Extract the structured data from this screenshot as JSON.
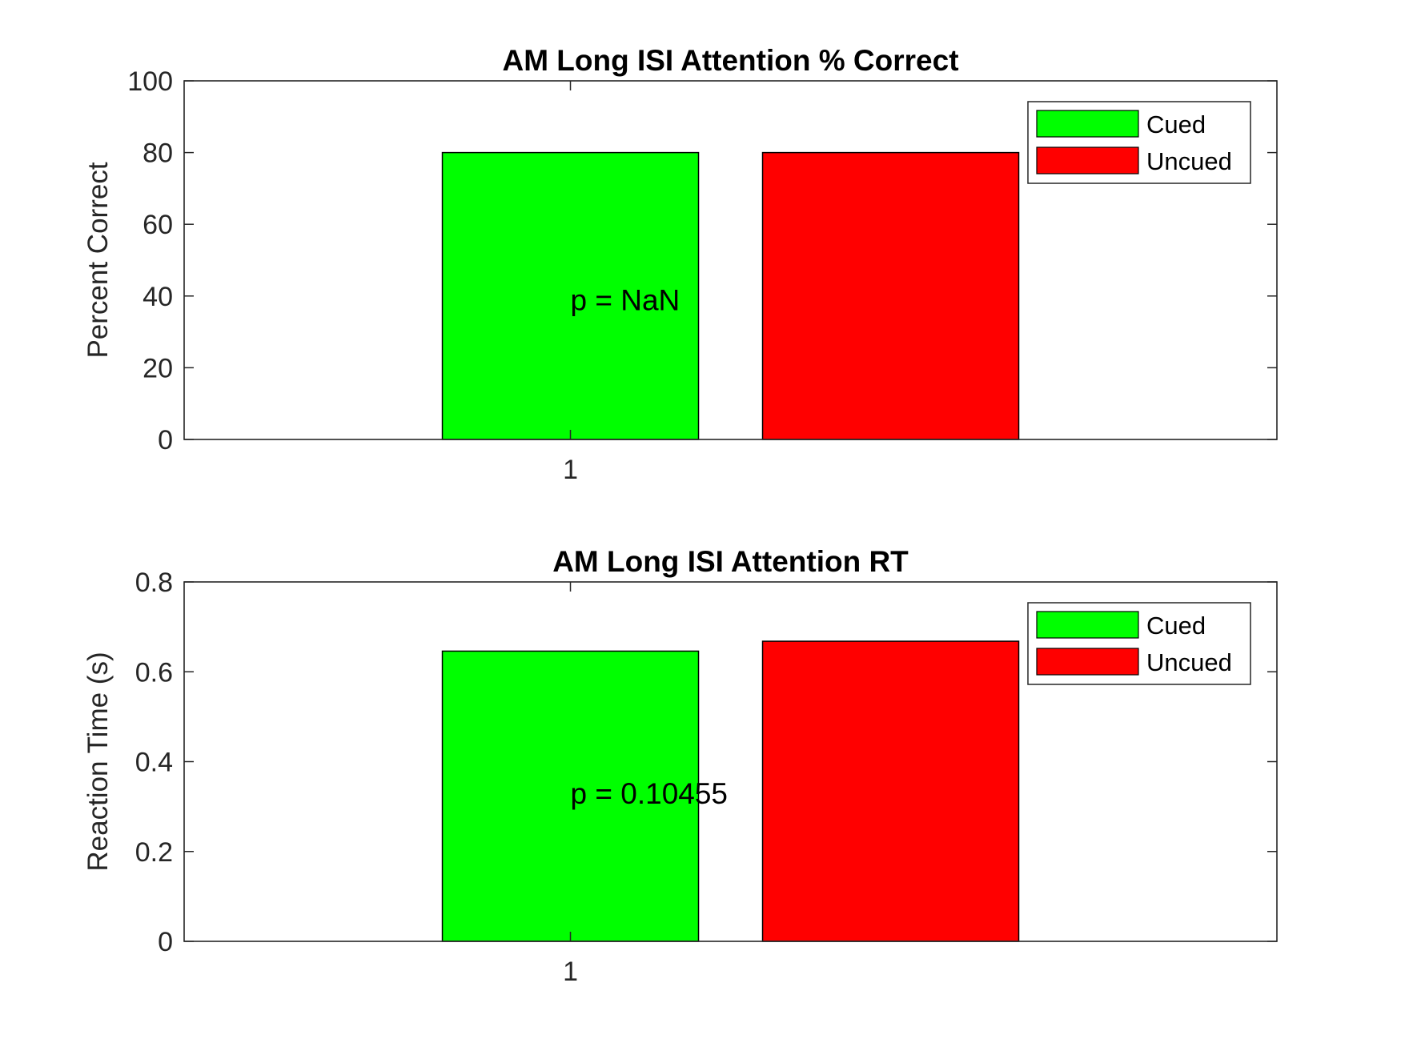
{
  "chart_data": [
    {
      "type": "bar",
      "title": "AM Long ISI Attention % Correct",
      "xlabel": "",
      "ylabel": "Percent Correct",
      "categories": [
        "1"
      ],
      "ylim": [
        0,
        100
      ],
      "yticks": [
        "0",
        "20",
        "40",
        "60",
        "80",
        "100"
      ],
      "yticks_values": [
        0,
        20,
        40,
        60,
        80,
        100
      ],
      "grid": false,
      "legend_position": "top-right",
      "series": [
        {
          "name": "Cued",
          "color": "#00ff00",
          "values": [
            80
          ]
        },
        {
          "name": "Uncued",
          "color": "#ff0000",
          "values": [
            80
          ]
        }
      ],
      "annotation": {
        "text": "p = NaN",
        "y": 39
      }
    },
    {
      "type": "bar",
      "title": "AM Long ISI Attention RT",
      "xlabel": "",
      "ylabel": "Reaction Time (s)",
      "categories": [
        "1"
      ],
      "ylim": [
        0,
        0.8
      ],
      "yticks": [
        "0",
        "0.2",
        "0.4",
        "0.6",
        "0.8"
      ],
      "yticks_values": [
        0,
        0.2,
        0.4,
        0.6,
        0.8
      ],
      "grid": false,
      "legend_position": "top-right",
      "series": [
        {
          "name": "Cued",
          "color": "#00ff00",
          "values": [
            0.646
          ]
        },
        {
          "name": "Uncued",
          "color": "#ff0000",
          "values": [
            0.668
          ]
        }
      ],
      "annotation": {
        "text": "p = 0.10455",
        "y": 0.33
      }
    }
  ]
}
